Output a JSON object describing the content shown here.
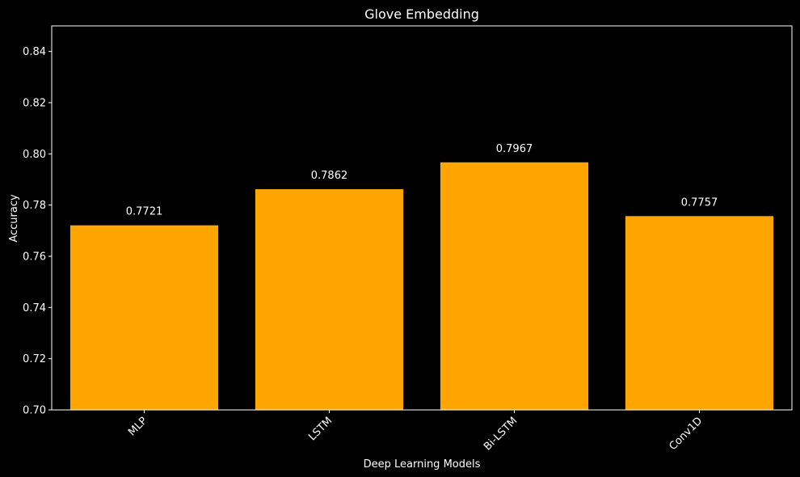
{
  "chart_data": {
    "type": "bar",
    "title": "Glove Embedding",
    "xlabel": "Deep Learning Models",
    "ylabel": "Accuracy",
    "categories": [
      "MLP",
      "LSTM",
      "Bi-LSTM",
      "Conv1D"
    ],
    "values": [
      0.7721,
      0.7862,
      0.7967,
      0.7757
    ],
    "value_labels": [
      "0.7721",
      "0.7862",
      "0.7967",
      "0.7757"
    ],
    "ylim": [
      0.7,
      0.85
    ],
    "yticks": [
      "0.70",
      "0.72",
      "0.74",
      "0.76",
      "0.78",
      "0.80",
      "0.82",
      "0.84"
    ],
    "grid": false,
    "legend": "none",
    "colors": {
      "background": "#000000",
      "bar": "#FFA500",
      "axes": "#ffffff",
      "text": "#ffffff"
    }
  }
}
